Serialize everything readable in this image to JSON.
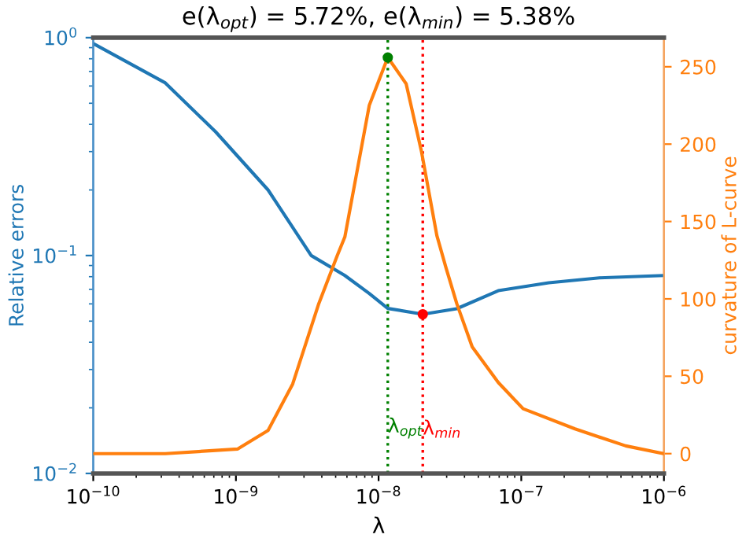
{
  "chart_data": {
    "type": "line",
    "title": "e(λ$_{opt}$) = 5.72%, e(λ$_{min}$) = 5.38%",
    "xlabel": "λ",
    "ylabel": "Relative errors",
    "y2label": "curvature of L-curve",
    "log": "xy",
    "grid": false,
    "marker": "none",
    "line_style": "solid",
    "xlim": [
      1e-10,
      1e-06
    ],
    "xticks": [
      {
        "value": 1e-10,
        "label": "10$^{−10}$"
      },
      {
        "value": 1e-09,
        "label": "10$^{−9}$"
      },
      {
        "value": 1e-08,
        "label": "10$^{−8}$"
      },
      {
        "value": 1e-07,
        "label": "10$^{−7}$"
      },
      {
        "value": 1e-06,
        "label": "10$^{−6}$"
      }
    ],
    "ylim": [
      0.01,
      1
    ],
    "yticks": [
      {
        "value": 0.01,
        "label": "10$^{−2}$"
      },
      {
        "value": 0.1,
        "label": "10$^{−1}$"
      },
      {
        "value": 1,
        "label": "10$^{0}$"
      }
    ],
    "y2lim": [
      -12.8,
      268.8
    ],
    "y2ticks": [
      0,
      50,
      100,
      150,
      200,
      250
    ],
    "series": [
      {
        "color": "#1f77b4",
        "x": [
          1e-10,
          3.2e-10,
          7.2e-10,
          1.68e-09,
          3.37e-09,
          5.8e-09,
          8.6e-09,
          1.16e-08,
          2.04e-08,
          3.53e-08,
          6.9e-08,
          1.56e-07,
          3.53e-07,
          1e-06
        ],
        "values": [
          0.94,
          0.62,
          0.37,
          0.2,
          0.1,
          0.081,
          0.067,
          0.0572,
          0.0538,
          0.057,
          0.069,
          0.075,
          0.079,
          0.081
        ]
      },
      {
        "color": "#ff7f0e",
        "axis": "y2",
        "x": [
          1e-10,
          3.2e-10,
          1.03e-09,
          1.68e-09,
          2.5e-09,
          3.81e-09,
          5.13e-09,
          5.8e-09,
          8.6e-09,
          1.16e-08,
          1.56e-08,
          2e-08,
          2.56e-08,
          2.97e-08,
          3.53e-08,
          4.53e-08,
          6.9e-08,
          1.03e-07,
          2.38e-07,
          5.4e-07,
          1e-06
        ],
        "values": [
          0,
          0,
          3,
          15,
          45,
          97,
          128,
          140,
          225,
          256,
          239,
          195,
          141,
          120,
          97,
          69,
          46,
          29,
          16,
          5,
          0
        ]
      },
      {
        "type": "scatter",
        "marker": "circle",
        "color": "#008000",
        "axis": "y2",
        "x": [
          1.16e-08
        ],
        "values": [
          256
        ]
      },
      {
        "type": "scatter",
        "marker": "circle",
        "color": "#ff0000",
        "x": [
          2.04e-08
        ],
        "values": [
          0.0538
        ]
      }
    ],
    "ref_lines": [
      {
        "axis": "x",
        "value": 1.16e-08,
        "label": "λ$_{opt}$",
        "color": "#008000",
        "line_style": "dotted"
      },
      {
        "axis": "x",
        "value": 2.04e-08,
        "label": "λ$_{min}$",
        "color": "#ff0000",
        "line_style": "dotted"
      }
    ]
  }
}
